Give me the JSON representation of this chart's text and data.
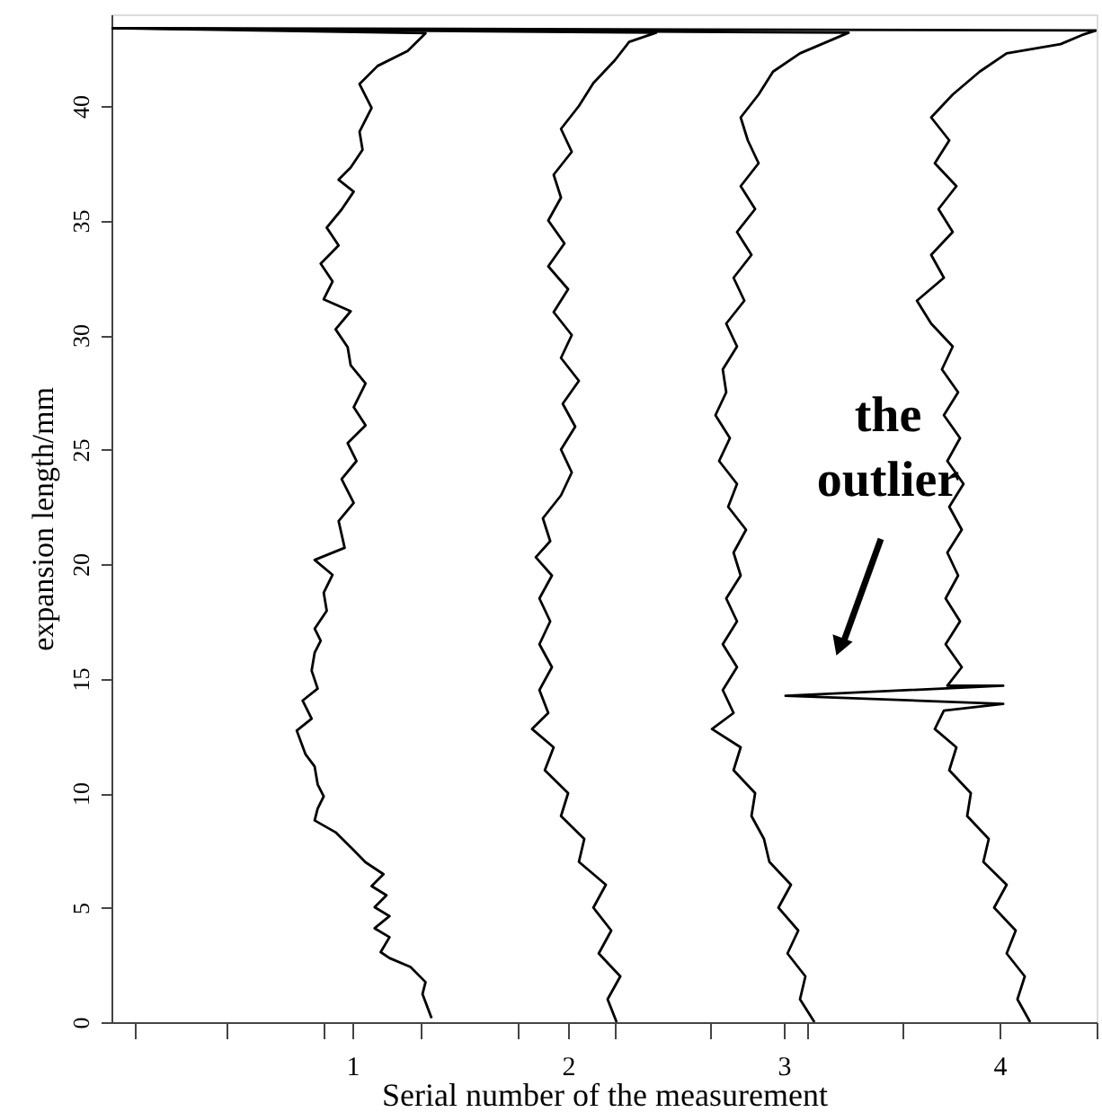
{
  "chart_data": {
    "type": "line",
    "xlabel": "Serial number of the measurement",
    "ylabel": "expansion length/mm",
    "xlim": [
      -0.117,
      4.45
    ],
    "ylim": [
      0,
      44
    ],
    "xticks": [
      {
        "value": -0.01,
        "label": null
      },
      {
        "value": 0.42,
        "label": null
      },
      {
        "value": 0.87,
        "label": null
      },
      1,
      {
        "value": 1.32,
        "label": null
      },
      {
        "value": 1.77,
        "label": null
      },
      2,
      {
        "value": 2.22,
        "label": null
      },
      {
        "value": 2.66,
        "label": null
      },
      3,
      {
        "value": 3.11,
        "label": null
      },
      {
        "value": 3.55,
        "label": null
      },
      4,
      {
        "value": 4.45,
        "label": null
      }
    ],
    "yticks": [
      0,
      5,
      10,
      15,
      20,
      25,
      30,
      35,
      40
    ],
    "grid": false,
    "marker": "none",
    "line_style": "solid",
    "annotations": [
      "the outlier"
    ],
    "series": [
      {
        "color": "#000000",
        "x": [
          1.367,
          1.325,
          1.339,
          1.269,
          1.172,
          1.131,
          1.172,
          1.103,
          1.172,
          1.103,
          1.158,
          1.089,
          1.144,
          1.061,
          1.006,
          0.922,
          0.825,
          0.839,
          0.867,
          0.839,
          0.825,
          0.783,
          0.742,
          0.811,
          0.769,
          0.839,
          0.811,
          0.825,
          0.853,
          0.825,
          0.881,
          0.867,
          0.908,
          0.825,
          0.964,
          0.936,
          1.006,
          0.95,
          1.019,
          0.978,
          1.061,
          1.006,
          1.061,
          0.992,
          0.978,
          0.922,
          0.992,
          0.867,
          0.908,
          0.853,
          0.936,
          0.881,
          0.95,
          1.006,
          0.936,
          0.992,
          1.047,
          1.033,
          1.089,
          1.033,
          1.117,
          1.256,
          1.339,
          -0.117
        ],
        "values": [
          0.18,
          1.23,
          1.75,
          2.41,
          2.8,
          3.06,
          3.71,
          4.1,
          4.63,
          5.02,
          5.54,
          5.94,
          6.46,
          6.98,
          7.51,
          8.29,
          8.81,
          9.33,
          9.86,
          10.38,
          11.16,
          11.69,
          12.73,
          13.25,
          14.04,
          14.56,
          15.35,
          16.13,
          16.65,
          17.18,
          17.96,
          18.75,
          19.53,
          20.18,
          20.71,
          21.88,
          22.67,
          23.71,
          24.5,
          25.28,
          26.06,
          26.85,
          27.89,
          28.68,
          29.47,
          30.25,
          31.04,
          31.56,
          32.34,
          33.12,
          33.91,
          34.69,
          35.48,
          36.26,
          36.78,
          37.31,
          38.09,
          38.88,
          39.92,
          40.96,
          41.75,
          42.4,
          43.18,
          43.4
        ]
      },
      {
        "color": "#000000",
        "x": [
          2.225,
          2.183,
          2.242,
          2.142,
          2.2,
          2.117,
          2.175,
          2.05,
          2.075,
          1.967,
          2.0,
          1.892,
          1.933,
          1.833,
          1.908,
          1.867,
          1.925,
          1.867,
          1.917,
          1.867,
          1.925,
          1.85,
          1.917,
          1.883,
          1.967,
          2.017,
          1.967,
          2.033,
          1.975,
          2.05,
          1.967,
          2.017,
          1.933,
          2.0,
          1.908,
          1.983,
          1.908,
          1.967,
          1.933,
          2.017,
          1.967,
          2.05,
          2.117,
          2.217,
          2.283,
          2.408,
          -0.117
        ],
        "values": [
          0,
          1,
          2,
          3,
          4,
          5,
          6,
          7,
          8,
          9,
          10,
          11,
          12,
          12.8,
          13.5,
          14.5,
          15.5,
          16.5,
          17.5,
          18.5,
          19.5,
          20.3,
          21,
          22,
          23,
          24,
          25,
          26,
          27,
          28,
          29,
          30,
          31,
          32,
          33,
          34,
          35,
          36,
          37,
          38,
          39,
          40,
          41,
          42,
          42.8,
          43.2,
          43.4
        ]
      },
      {
        "color": "#000000",
        "x": [
          3.142,
          3.075,
          3.1,
          3.017,
          3.067,
          2.975,
          3.033,
          2.933,
          2.908,
          2.85,
          2.867,
          2.767,
          2.8,
          2.667,
          2.767,
          2.717,
          2.783,
          2.717,
          2.783,
          2.733,
          2.8,
          2.767,
          2.825,
          2.742,
          2.783,
          2.7,
          2.75,
          2.683,
          2.733,
          2.717,
          2.783,
          2.733,
          2.817,
          2.767,
          2.85,
          2.783,
          2.867,
          2.8,
          2.883,
          2.833,
          2.8,
          2.883,
          2.95,
          3.075,
          3.2,
          3.3,
          -0.117
        ],
        "values": [
          0,
          1,
          2,
          3,
          4,
          5,
          6,
          7,
          8,
          9,
          10,
          11,
          12,
          12.8,
          13.5,
          14.5,
          15.5,
          16.5,
          17.5,
          18.5,
          19.5,
          20.5,
          21.5,
          22.5,
          23.5,
          24.5,
          25.5,
          26.5,
          27.5,
          28.5,
          29.5,
          30.5,
          31.5,
          32.5,
          33.5,
          34.5,
          35.5,
          36.5,
          37.5,
          38.5,
          39.5,
          40.5,
          41.5,
          42.3,
          42.8,
          43.2,
          43.4
        ]
      },
      {
        "color": "#000000",
        "x": [
          4.142,
          4.083,
          4.117,
          4.033,
          4.075,
          3.975,
          4.033,
          3.925,
          3.95,
          3.85,
          3.867,
          3.767,
          3.8,
          3.7,
          3.742,
          4.017,
          3.008,
          4.017,
          3.758,
          3.825,
          3.75,
          3.817,
          3.75,
          3.808,
          3.758,
          3.825,
          3.767,
          3.833,
          3.758,
          3.817,
          3.742,
          3.808,
          3.733,
          3.783,
          3.683,
          3.617,
          3.742,
          3.683,
          3.783,
          3.717,
          3.8,
          3.7,
          3.767,
          3.683,
          3.783,
          3.908,
          4.033,
          4.283,
          4.383,
          4.45,
          -0.117
        ],
        "values": [
          0,
          1,
          2,
          3,
          4,
          5,
          6,
          7,
          8,
          9,
          10,
          11,
          12,
          12.8,
          13.6,
          13.9,
          14.25,
          14.69,
          14.69,
          15.5,
          16.5,
          17.5,
          18.5,
          19.5,
          20.5,
          21.5,
          22.5,
          23.5,
          24.5,
          25.5,
          26.5,
          27.5,
          28.5,
          29.5,
          30.5,
          31.5,
          32.5,
          33.5,
          34.5,
          35.5,
          36.5,
          37.5,
          38.5,
          39.5,
          40.5,
          41.5,
          42.3,
          42.7,
          43.1,
          43.3,
          43.4
        ]
      }
    ]
  }
}
